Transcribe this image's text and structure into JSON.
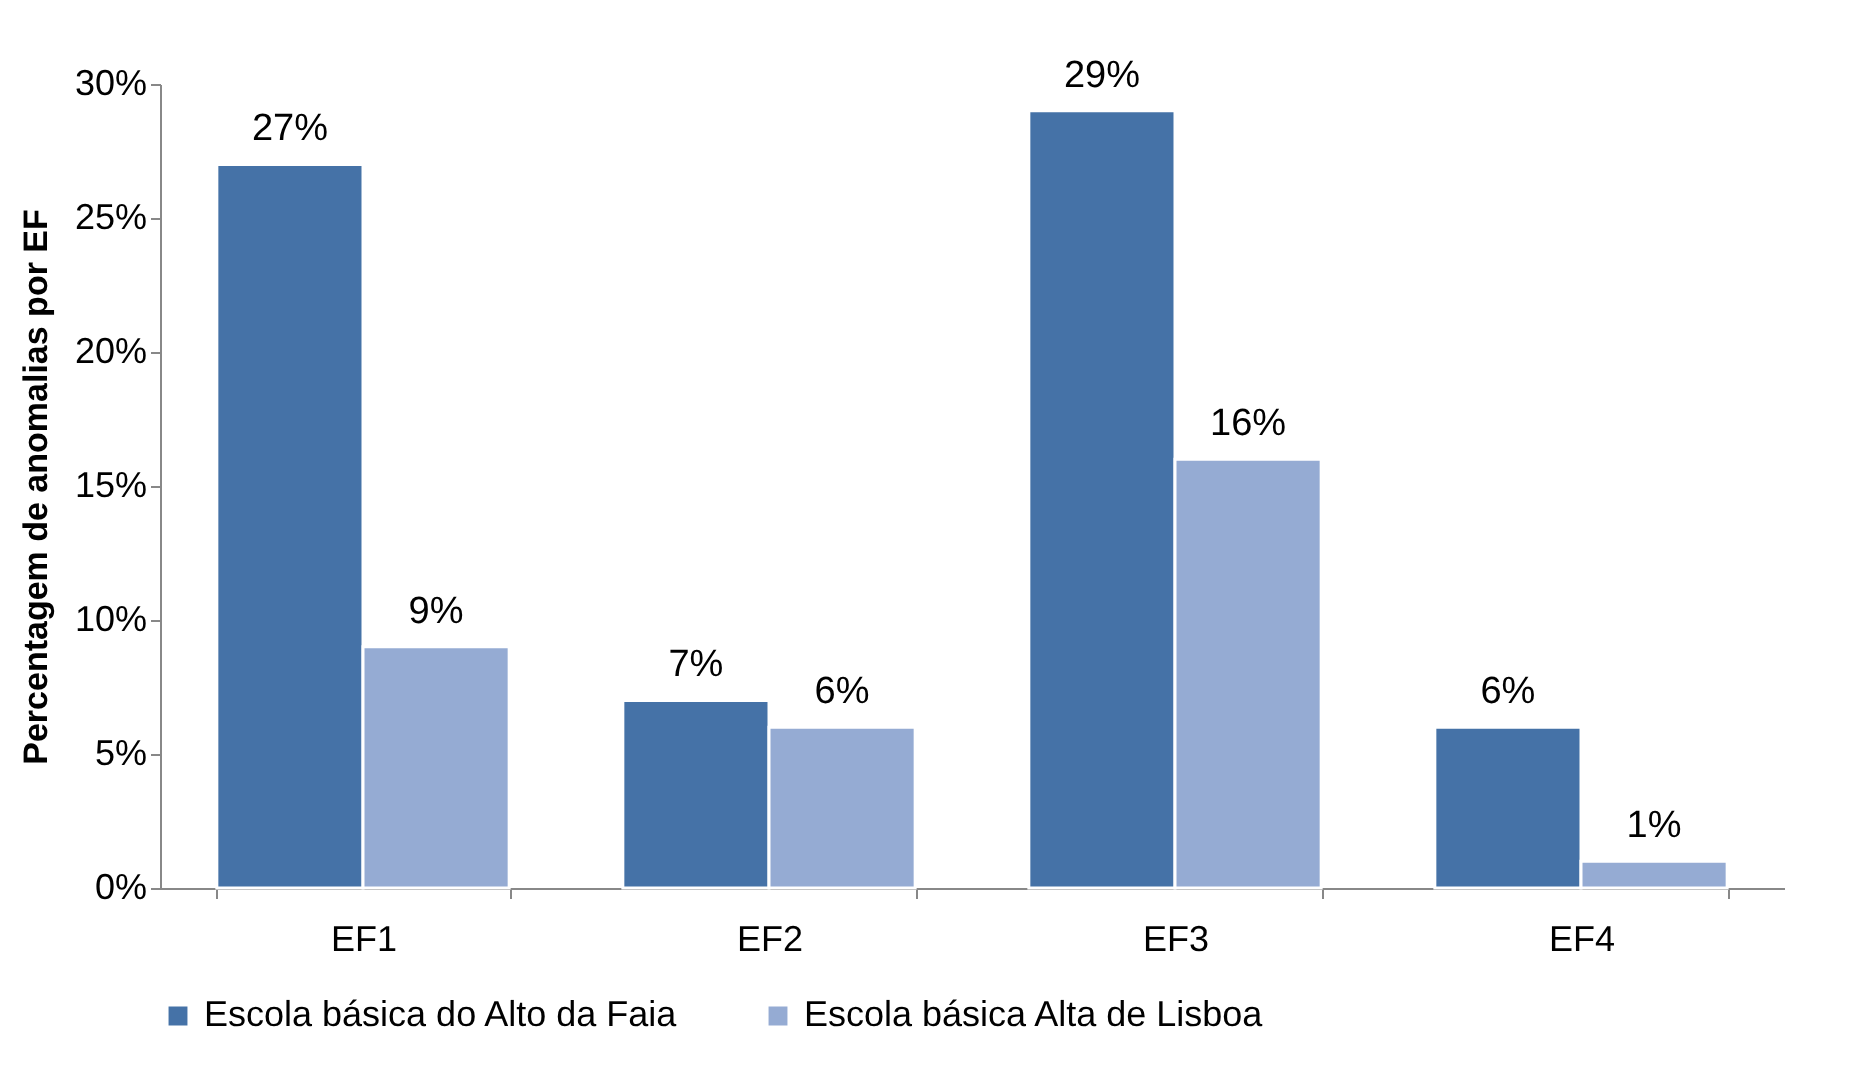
{
  "chart_data": {
    "type": "bar",
    "ylabel": "Percentagem de anomalias por EF",
    "categories": [
      "EF1",
      "EF2",
      "EF3",
      "EF4"
    ],
    "series": [
      {
        "name": "Escola básica do Alto da Faia",
        "color": "#4572a7",
        "values": [
          27,
          7,
          29,
          6
        ],
        "value_labels": [
          "27%",
          "7%",
          "29%",
          "6%"
        ]
      },
      {
        "name": "Escola básica Alta de Lisboa",
        "color": "#95abd3",
        "values": [
          9,
          6,
          16,
          1
        ],
        "value_labels": [
          "9%",
          "6%",
          "16%",
          "1%"
        ]
      }
    ],
    "ylim": [
      0,
      30
    ],
    "yticks": [
      {
        "value": 0,
        "label": "0%"
      },
      {
        "value": 5,
        "label": "5%"
      },
      {
        "value": 10,
        "label": "10%"
      },
      {
        "value": 15,
        "label": "15%"
      },
      {
        "value": 20,
        "label": "20%"
      },
      {
        "value": 25,
        "label": "25%"
      },
      {
        "value": 30,
        "label": "30%"
      }
    ],
    "grid": false,
    "legend": "bottom"
  }
}
